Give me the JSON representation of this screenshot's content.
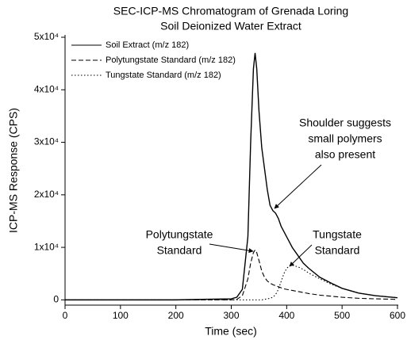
{
  "chart_data": {
    "type": "line",
    "title": "SEC-ICP-MS Chromatogram of Grenada Loring",
    "subtitle": "Soil Deionized Water Extract",
    "x_label": "Time (sec)",
    "y_label": "ICP-MS Response (CPS)",
    "x": [
      0,
      100,
      200,
      300,
      310,
      320,
      330,
      335,
      340,
      343,
      346,
      350,
      355,
      360,
      365,
      370,
      375,
      380,
      385,
      390,
      395,
      400,
      405,
      410,
      420,
      430,
      440,
      460,
      480,
      500,
      530,
      560,
      600
    ],
    "series": [
      {
        "name": "Soil Extract (m/z 182)",
        "color": "#000000",
        "dash": "solid",
        "values": [
          0,
          0,
          0,
          200,
          500,
          2000,
          12000,
          30000,
          44000,
          47000,
          44000,
          36000,
          29000,
          25000,
          21000,
          18000,
          17000,
          16500,
          15500,
          14000,
          13000,
          12000,
          11000,
          10000,
          8500,
          7000,
          6000,
          4300,
          3200,
          2200,
          1300,
          800,
          400
        ]
      },
      {
        "name": "Polytungstate Standard (m/z 182)",
        "color": "#000000",
        "dash": "dashed",
        "values": [
          0,
          0,
          0,
          0,
          100,
          800,
          4000,
          7000,
          9000,
          9500,
          9000,
          7500,
          5500,
          4300,
          3600,
          3200,
          2900,
          2700,
          2500,
          2300,
          2100,
          2000,
          1900,
          1800,
          1600,
          1400,
          1200,
          900,
          700,
          500,
          300,
          200,
          100
        ]
      },
      {
        "name": "Tungstate Standard (m/z 182)",
        "color": "#000000",
        "dash": "dotted",
        "values": [
          0,
          0,
          0,
          0,
          0,
          0,
          0,
          0,
          0,
          0,
          0,
          0,
          0,
          100,
          200,
          300,
          500,
          1000,
          2000,
          3500,
          5000,
          6000,
          6500,
          6600,
          6300,
          5800,
          5100,
          4000,
          3000,
          2200,
          1300,
          800,
          400
        ]
      }
    ],
    "xlim": [
      0,
      600
    ],
    "xticks": [
      0,
      100,
      200,
      300,
      400,
      500,
      600
    ],
    "ylim": [
      -1000,
      50000
    ],
    "yticks": [
      0,
      {
        "value": 10000,
        "label": "1x10⁴"
      },
      {
        "value": 20000,
        "label": "2x10⁴"
      },
      {
        "value": 30000,
        "label": "3x10⁴"
      },
      {
        "value": 40000,
        "label": "4x10⁴"
      },
      {
        "value": 50000,
        "label": "5x10⁴"
      }
    ],
    "legend": "top-left",
    "annotations": [
      {
        "lines": [
          "Shoulder suggests",
          "small polymers",
          "also present"
        ]
      },
      {
        "lines": [
          "Polytungstate",
          "Standard"
        ]
      },
      {
        "lines": [
          "Tungstate",
          "Standard"
        ]
      }
    ]
  }
}
